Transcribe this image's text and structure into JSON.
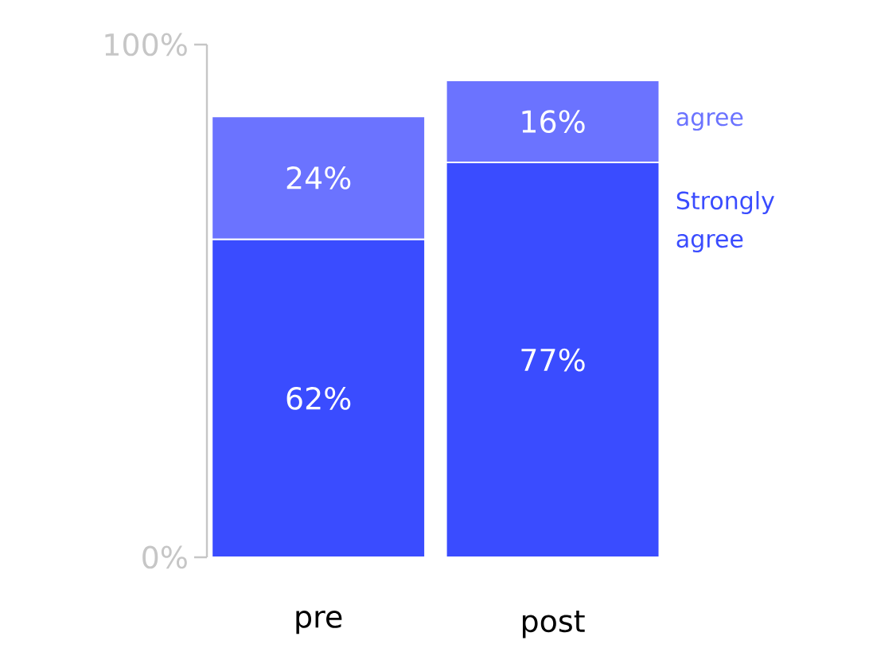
{
  "chart_data": {
    "type": "bar",
    "stacked": true,
    "categories": [
      "pre",
      "post"
    ],
    "series": [
      {
        "name": "Strongly agree",
        "color": "#3a4cff",
        "values": [
          62,
          77
        ],
        "value_labels": [
          "62%",
          "77%"
        ]
      },
      {
        "name": "agree",
        "color": "#6b73ff",
        "values": [
          24,
          16
        ],
        "value_labels": [
          "24%",
          "16%"
        ]
      }
    ],
    "ylim": [
      0,
      100
    ],
    "yticks": [
      {
        "value": 0,
        "label": "0%"
      },
      {
        "value": 100,
        "label": "100%"
      }
    ],
    "legend": "right",
    "grid": false
  }
}
